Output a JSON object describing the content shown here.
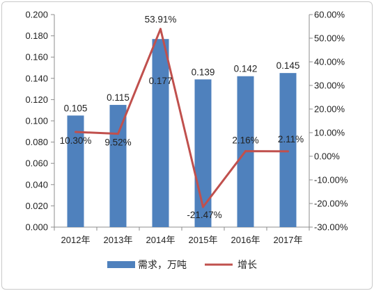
{
  "chart_data": {
    "type": "bar+line",
    "categories": [
      "2012年",
      "2013年",
      "2014年",
      "2015年",
      "2016年",
      "2017年"
    ],
    "series": [
      {
        "name": "需求，万吨",
        "type": "bar",
        "axis": "left",
        "values": [
          0.105,
          0.115,
          0.177,
          0.139,
          0.142,
          0.145
        ],
        "labels": [
          "0.105",
          "0.115",
          "0.177",
          "0.139",
          "0.142",
          "0.145"
        ],
        "color": "#4f81bd"
      },
      {
        "name": "增长",
        "type": "line",
        "axis": "right",
        "values": [
          10.3,
          9.52,
          53.91,
          -21.47,
          2.16,
          2.11
        ],
        "labels": [
          "10.30%",
          "9.52%",
          "53.91%",
          "-21.47%",
          "2.16%",
          "2.11%"
        ],
        "color": "#c0504d"
      }
    ],
    "y_left": {
      "lim": [
        0,
        0.2
      ],
      "ticks": [
        "0.000",
        "0.020",
        "0.040",
        "0.060",
        "0.080",
        "0.100",
        "0.120",
        "0.140",
        "0.160",
        "0.180",
        "0.200"
      ]
    },
    "y_right": {
      "lim": [
        -30,
        60
      ],
      "ticks": [
        "-30.00%",
        "-20.00%",
        "-10.00%",
        "0.00%",
        "10.00%",
        "20.00%",
        "30.00%",
        "40.00%",
        "50.00%",
        "60.00%"
      ]
    },
    "grid": false,
    "legend": "bottom"
  }
}
